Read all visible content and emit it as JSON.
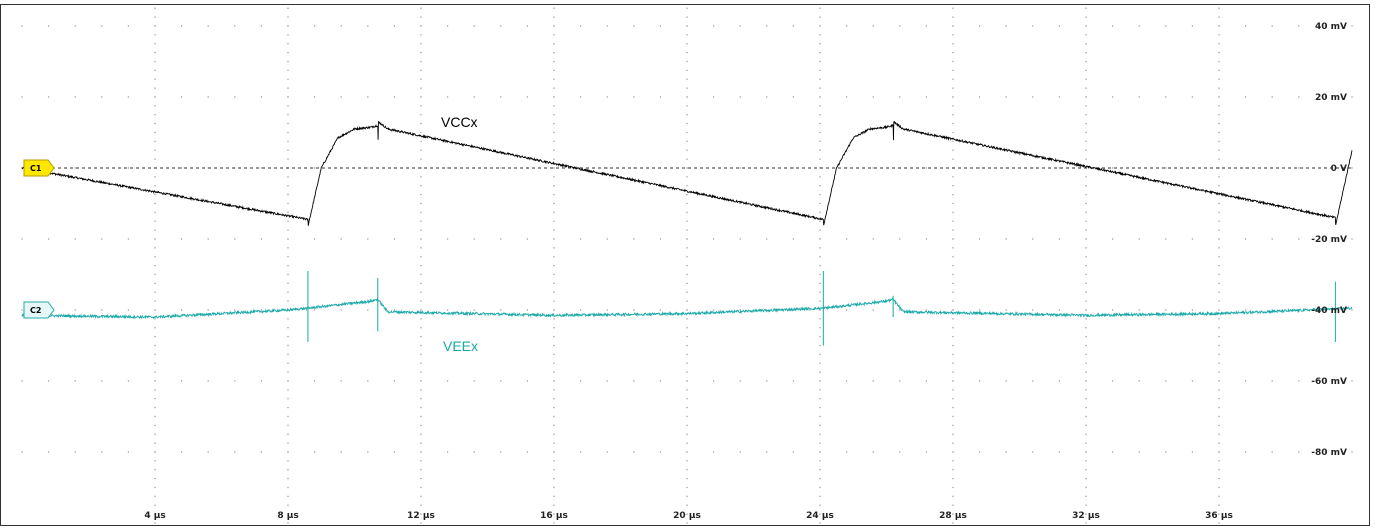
{
  "chart_data": {
    "type": "line",
    "title": "",
    "xlabel": "",
    "ylabel": "",
    "x_unit": "µs",
    "y_unit": "mV",
    "xlim": [
      0,
      40
    ],
    "ylim": [
      -100,
      45
    ],
    "grid": true,
    "x_ticks": [
      {
        "value": 4,
        "label": "4 µs"
      },
      {
        "value": 8,
        "label": "8 µs"
      },
      {
        "value": 12,
        "label": "12 µs"
      },
      {
        "value": 16,
        "label": "16 µs"
      },
      {
        "value": 20,
        "label": "20 µs"
      },
      {
        "value": 24,
        "label": "24 µs"
      },
      {
        "value": 28,
        "label": "28 µs"
      },
      {
        "value": 32,
        "label": "32 µs"
      },
      {
        "value": 36,
        "label": "36 µs"
      }
    ],
    "y_ticks": [
      {
        "value": 40,
        "label": "40 mV"
      },
      {
        "value": 20,
        "label": "20 mV"
      },
      {
        "value": 0,
        "label": "0 V"
      },
      {
        "value": -20,
        "label": "-20 mV"
      },
      {
        "value": -40,
        "label": "-40 mV"
      },
      {
        "value": -60,
        "label": "-60 mV"
      },
      {
        "value": -80,
        "label": "-80 mV"
      }
    ],
    "reference_line": {
      "value": 0,
      "style": "dashed"
    },
    "series": [
      {
        "name": "VCCx",
        "marker": "C1",
        "color": "#000000",
        "marker_color": "#ffe800",
        "offset_mV": 0,
        "points": [
          [
            0,
            0
          ],
          [
            8.6,
            -14.5
          ],
          [
            8.61,
            -16
          ],
          [
            9.0,
            0
          ],
          [
            9.5,
            8.5
          ],
          [
            10.0,
            11
          ],
          [
            10.5,
            11.5
          ],
          [
            10.7,
            12
          ],
          [
            10.71,
            8
          ],
          [
            10.72,
            13
          ],
          [
            11.0,
            11
          ],
          [
            24.1,
            -14.5
          ],
          [
            24.11,
            -16
          ],
          [
            24.5,
            0
          ],
          [
            25.0,
            8.5
          ],
          [
            25.5,
            11
          ],
          [
            26.0,
            11.5
          ],
          [
            26.2,
            12
          ],
          [
            26.21,
            8
          ],
          [
            26.22,
            13
          ],
          [
            26.5,
            11
          ],
          [
            39.5,
            -14
          ],
          [
            39.51,
            -16
          ],
          [
            40.0,
            5
          ]
        ]
      },
      {
        "name": "VEEx",
        "marker": "C2",
        "color": "#1aa8a8",
        "marker_color": "#e6f7f7",
        "offset_mV": -40,
        "points": [
          [
            0,
            -41.5
          ],
          [
            4,
            -42
          ],
          [
            8,
            -40
          ],
          [
            8.6,
            -39.5
          ],
          [
            10.5,
            -37.5
          ],
          [
            10.7,
            -37
          ],
          [
            11,
            -40.5
          ],
          [
            16,
            -41.5
          ],
          [
            20,
            -41
          ],
          [
            24.1,
            -39.5
          ],
          [
            26,
            -37.5
          ],
          [
            26.2,
            -37
          ],
          [
            26.5,
            -40.5
          ],
          [
            32,
            -41.5
          ],
          [
            36,
            -41
          ],
          [
            40,
            -39.5
          ]
        ],
        "spikes": [
          [
            8.6,
            -29,
            -49
          ],
          [
            10.7,
            -31,
            -46
          ],
          [
            24.1,
            -29,
            -50
          ],
          [
            26.2,
            -36,
            -42
          ],
          [
            39.5,
            -32,
            -49
          ]
        ]
      }
    ]
  }
}
